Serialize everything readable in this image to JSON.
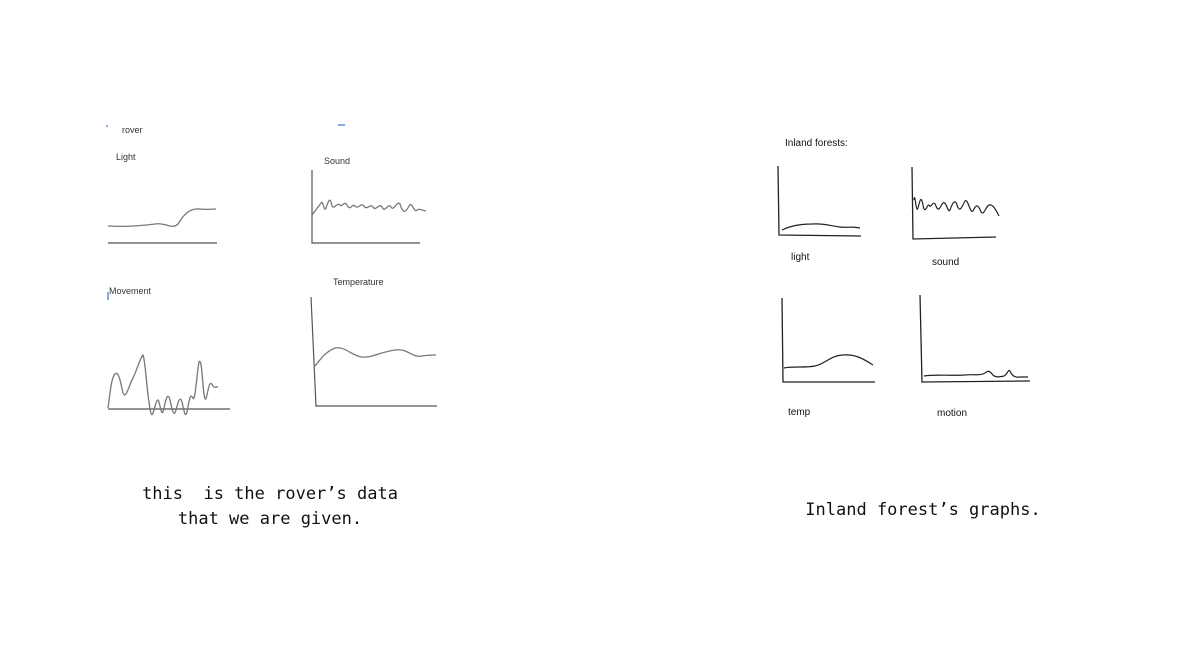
{
  "rover_panel": {
    "title": "rover",
    "graphs": {
      "light": "Light",
      "sound": "Sound",
      "movement": "Movement",
      "temperature": "Temperature"
    },
    "caption_line1": "this  is the rover’s data",
    "caption_line2": "that we are given."
  },
  "forest_panel": {
    "title": "Inland forests:",
    "graphs": {
      "light": "light",
      "sound": "sound",
      "temp": "temp",
      "motion": "motion"
    },
    "caption": "Inland forest’s graphs."
  }
}
